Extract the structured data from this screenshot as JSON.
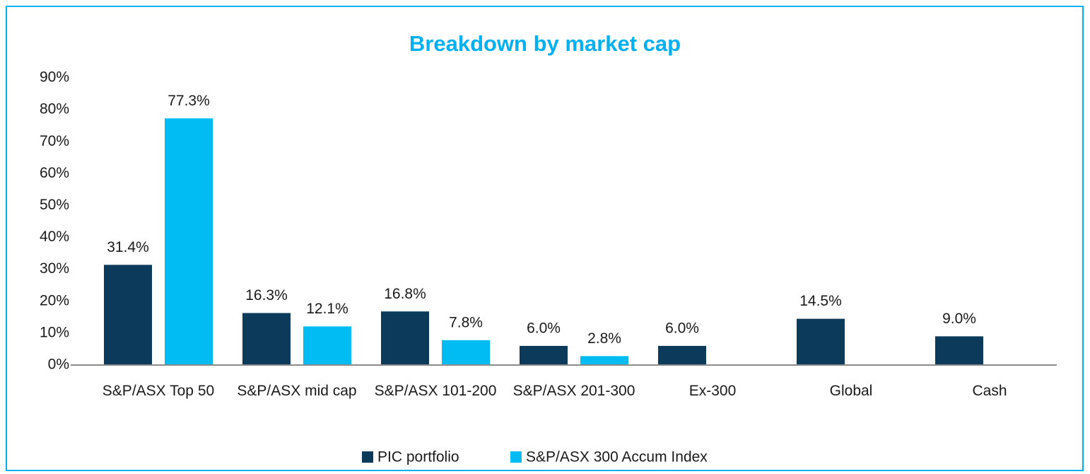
{
  "chart_data": {
    "type": "bar",
    "title": "Breakdown by market cap",
    "categories": [
      "S&P/ASX Top 50",
      "S&P/ASX mid cap",
      "S&P/ASX 101-200",
      "S&P/ASX 201-300",
      "Ex-300",
      "Global",
      "Cash"
    ],
    "series": [
      {
        "name": "PIC portfolio",
        "color": "#0b3a5b",
        "values": [
          31.4,
          16.3,
          16.8,
          6.0,
          6.0,
          14.5,
          9.0
        ],
        "value_labels": [
          "31.4%",
          "16.3%",
          "16.8%",
          "6.0%",
          "6.0%",
          "14.5%",
          "9.0%"
        ]
      },
      {
        "name": "S&P/ASX 300 Accum Index",
        "color": "#00bcf2",
        "values": [
          77.3,
          12.1,
          7.8,
          2.8,
          null,
          null,
          null
        ],
        "value_labels": [
          "77.3%",
          "12.1%",
          "7.8%",
          "2.8%",
          null,
          null,
          null
        ]
      }
    ],
    "ylim": [
      0,
      90
    ],
    "yticks": [
      {
        "value": 0,
        "label": "0%"
      },
      {
        "value": 10,
        "label": "10%"
      },
      {
        "value": 20,
        "label": "20%"
      },
      {
        "value": 30,
        "label": "30%"
      },
      {
        "value": 40,
        "label": "40%"
      },
      {
        "value": 50,
        "label": "50%"
      },
      {
        "value": 60,
        "label": "60%"
      },
      {
        "value": 70,
        "label": "70%"
      },
      {
        "value": 80,
        "label": "80%"
      },
      {
        "value": 90,
        "label": "90%"
      }
    ],
    "grid": false,
    "legend": "bottom"
  }
}
